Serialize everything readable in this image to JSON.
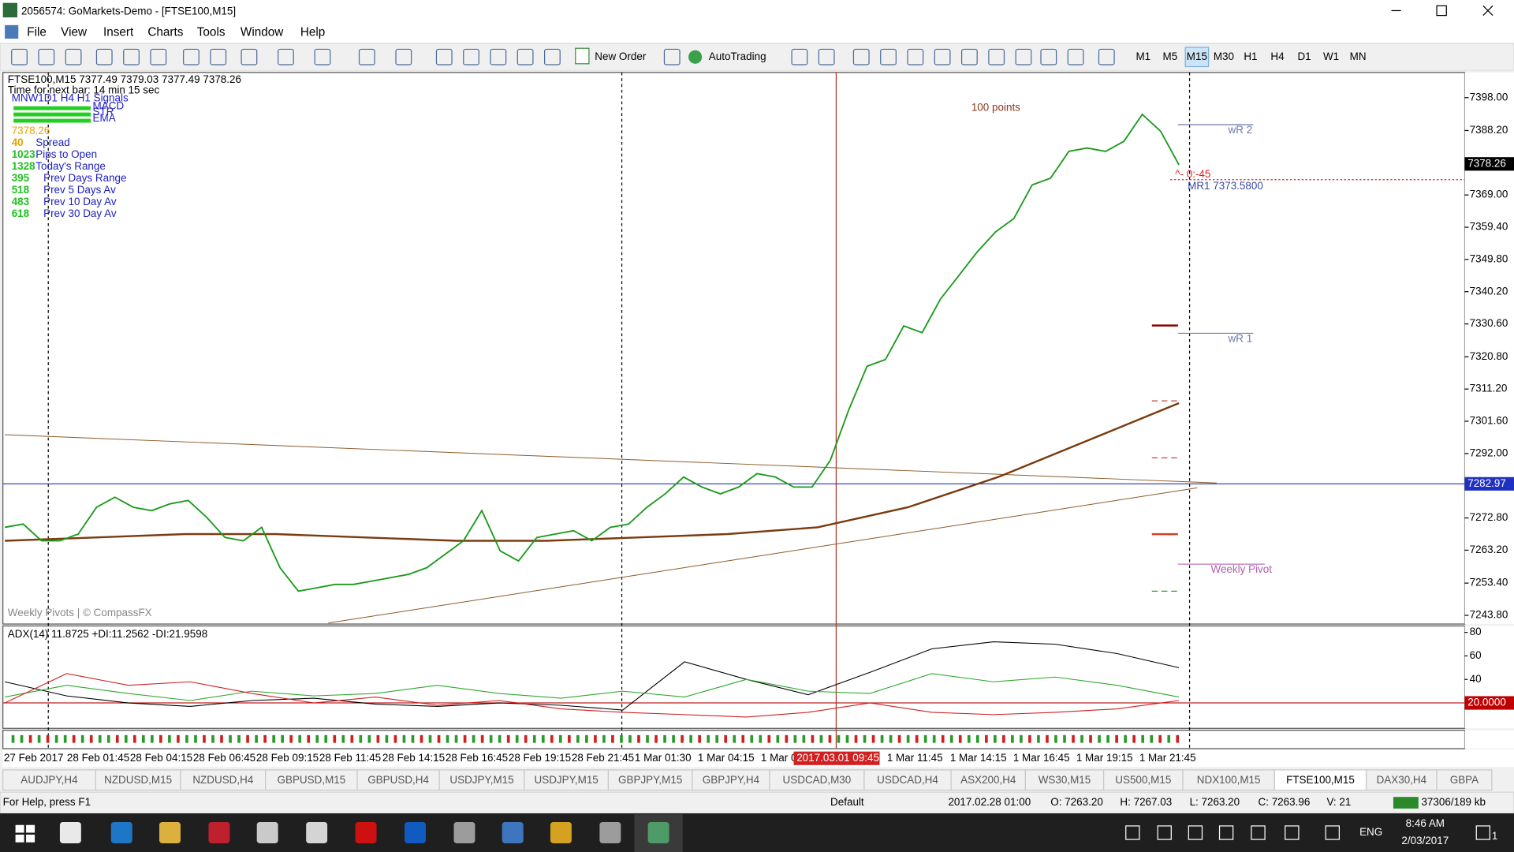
{
  "window": {
    "title": "2056574: GoMarkets-Demo - [FTSE100,M15]"
  },
  "menu": [
    "File",
    "View",
    "Insert",
    "Charts",
    "Tools",
    "Window",
    "Help"
  ],
  "toolbar": {
    "new_order": "New Order",
    "autotrading": "AutoTrading",
    "timeframes": [
      "M1",
      "M5",
      "M15",
      "M30",
      "H1",
      "H4",
      "D1",
      "W1",
      "MN"
    ],
    "active_timeframe": 2
  },
  "chart": {
    "header": "FTSE100,M15  7377.49 7379.03 7377.49 7378.26",
    "timer": "Time for next bar: 14 min 15 sec",
    "signals_label": "MNW1D1 H4 H1  Signals",
    "signal_rows": [
      "MACD",
      "STR",
      "EMA"
    ],
    "price_big": "7378.26",
    "stats": [
      {
        "value": "40",
        "label": "Spread"
      },
      {
        "value": "1023",
        "label": "Pips to Open"
      },
      {
        "value": "1328",
        "label": "Today's Range"
      },
      {
        "value": "395",
        "label": "Prev Days Range"
      },
      {
        "value": "518",
        "label": "Prev 5 Days Av"
      },
      {
        "value": "483",
        "label": "Prev 10 Day Av"
      },
      {
        "value": "618",
        "label": "Prev 30 Day Av"
      }
    ],
    "annotation": "100 points",
    "countdown": "^- 0:-45",
    "pivot_labels": {
      "wr2": "wR 2",
      "mr1": "MR1   7373.5800",
      "wr1": "wR 1",
      "weekly": "Weekly Pivot"
    },
    "credit": "Weekly Pivots | © CompassFX",
    "ylim": [
      7241.5,
      7405.5
    ],
    "yticks": [
      {
        "value": 7398,
        "label": "7398.00"
      },
      {
        "value": 7388.2,
        "label": "7388.20"
      },
      {
        "value": 7369,
        "label": "7369.00"
      },
      {
        "value": 7359.4,
        "label": "7359.40"
      },
      {
        "value": 7349.8,
        "label": "7349.80"
      },
      {
        "value": 7340.2,
        "label": "7340.20"
      },
      {
        "value": 7330.6,
        "label": "7330.60"
      },
      {
        "value": 7320.8,
        "label": "7320.80"
      },
      {
        "value": 7311.2,
        "label": "7311.20"
      },
      {
        "value": 7301.6,
        "label": "7301.60"
      },
      {
        "value": 7292,
        "label": "7292.00"
      },
      {
        "value": 7272.8,
        "label": "7272.80"
      },
      {
        "value": 7263.2,
        "label": "7263.20"
      },
      {
        "value": 7253.4,
        "label": "7253.40"
      },
      {
        "value": 7243.8,
        "label": "7243.80"
      }
    ],
    "current_price": 7378.26,
    "hline_price": 7282.97,
    "close_color": "#1a9a1a",
    "close": [
      7270,
      7271,
      7266,
      7266,
      7268,
      7276,
      7279,
      7276,
      7275,
      7277,
      7278,
      7273,
      7267,
      7266,
      7270,
      7258,
      7251,
      7252,
      7253,
      7253,
      7254,
      7255,
      7256,
      7258,
      7262,
      7266,
      7275,
      7263,
      7260,
      7267,
      7268,
      7269,
      7266,
      7270,
      7271,
      7276,
      7280,
      7285,
      7282,
      7280,
      7282,
      7286,
      7285,
      7282,
      7282,
      7290,
      7305,
      7318,
      7320,
      7330,
      7328,
      7338,
      7345,
      7352,
      7358,
      7362,
      7372,
      7374,
      7382,
      7383,
      7382,
      7385,
      7393,
      7388,
      7378
    ],
    "slow_ma_color": "#7a3b10",
    "slow_ma": [
      7266,
      7267,
      7268,
      7268,
      7267,
      7266,
      7266,
      7267,
      7268,
      7270,
      7276,
      7285,
      7296,
      7307
    ],
    "time_labels": [
      "27 Feb 2017",
      "28 Feb 01:45",
      "28 Feb 04:15",
      "28 Feb 06:45",
      "28 Feb 09:15",
      "28 Feb 11:45",
      "28 Feb 14:15",
      "28 Feb 16:45",
      "28 Feb 19:15",
      "28 Feb 21:45",
      "1 Mar 01:30",
      "1 Mar 04:15",
      "1 Mar 0",
      "1 Mar 11:45",
      "1 Mar 14:15",
      "1 Mar 16:45",
      "1 Mar 19:15",
      "1 Mar 21:45"
    ],
    "time_cursor": "2017.03.01 09:45"
  },
  "indicator": {
    "header": "ADX(14) 11.8725 +DI:11.2562 -DI:21.9598",
    "ylim": [
      0,
      85.5
    ],
    "yticks": [
      80,
      60,
      40
    ],
    "level": {
      "value": 20,
      "label": "20.0000"
    },
    "series": [
      {
        "color": "#000000",
        "values": [
          38,
          26,
          20,
          17,
          22,
          24,
          19,
          17,
          20,
          18,
          14,
          55,
          40,
          27,
          46,
          66,
          72,
          70,
          62,
          50
        ]
      },
      {
        "color": "#2fa82f",
        "values": [
          25,
          35,
          28,
          22,
          30,
          26,
          28,
          35,
          28,
          24,
          30,
          25,
          40,
          30,
          28,
          45,
          38,
          42,
          35,
          25
        ]
      },
      {
        "color": "#d02020",
        "values": [
          20,
          45,
          35,
          38,
          28,
          20,
          25,
          18,
          22,
          15,
          12,
          10,
          8,
          12,
          20,
          12,
          10,
          12,
          15,
          22
        ]
      }
    ]
  },
  "tabs": [
    "AUDJPY,H4",
    "NZDUSD,M15",
    "NZDUSD,H4",
    "GBPUSD,M15",
    "GBPUSD,H4",
    "USDJPY,M15",
    "USDJPY,M15",
    "GBPJPY,M15",
    "GBPJPY,H4",
    "USDCAD,M30",
    "USDCAD,H4",
    "ASX200,H4",
    "WS30,M15",
    "US500,M15",
    "NDX100,M15",
    "FTSE100,M15",
    "DAX30,H4",
    "GBPA"
  ],
  "active_tab": 15,
  "status": {
    "help": "For Help, press F1",
    "profile": "Default",
    "time": "2017.02.28 01:00",
    "open": "O: 7263.20",
    "high": "H: 7267.03",
    "low": "L: 7263.20",
    "close": "C: 7263.96",
    "volume": "V: 21",
    "traffic": "37306/189 kb"
  },
  "taskbar": {
    "lang": "ENG",
    "time": "8:46 AM",
    "date": "2/03/2017",
    "notifications": "1"
  }
}
